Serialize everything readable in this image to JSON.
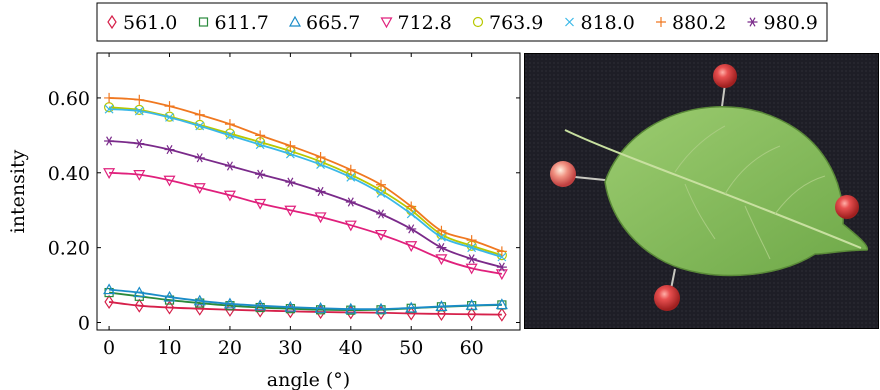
{
  "chart_data": {
    "type": "line",
    "xlabel": "angle (°)",
    "ylabel": "intensity",
    "xlim": [
      -2,
      68
    ],
    "ylim": [
      -0.02,
      0.72
    ],
    "xticks": [
      0,
      10,
      20,
      30,
      40,
      50,
      60
    ],
    "xtick_labels": [
      "0",
      "10",
      "20",
      "30",
      "40",
      "50",
      "60"
    ],
    "yticks": [
      0,
      0.2,
      0.4,
      0.6
    ],
    "ytick_labels": [
      "0",
      "0.20",
      "0.40",
      "0.60"
    ],
    "legend_position": "top",
    "grid": false,
    "x": [
      0,
      5,
      10,
      15,
      20,
      25,
      30,
      35,
      40,
      45,
      50,
      55,
      60,
      65
    ],
    "series": [
      {
        "name": "561.0",
        "color": "#d6204a",
        "marker": "diamond",
        "values": [
          0.055,
          0.045,
          0.04,
          0.037,
          0.034,
          0.032,
          0.03,
          0.028,
          0.027,
          0.026,
          0.024,
          0.023,
          0.022,
          0.021
        ]
      },
      {
        "name": "611.7",
        "color": "#2a8a3c",
        "marker": "square",
        "values": [
          0.08,
          0.07,
          0.06,
          0.052,
          0.045,
          0.04,
          0.037,
          0.034,
          0.033,
          0.034,
          0.038,
          0.042,
          0.045,
          0.047
        ]
      },
      {
        "name": "665.7",
        "color": "#1a8cc8",
        "marker": "triangle-up",
        "values": [
          0.088,
          0.08,
          0.068,
          0.058,
          0.05,
          0.045,
          0.041,
          0.038,
          0.036,
          0.036,
          0.039,
          0.043,
          0.046,
          0.048
        ]
      },
      {
        "name": "712.8",
        "color": "#e0207c",
        "marker": "triangle-down",
        "values": [
          0.4,
          0.395,
          0.38,
          0.36,
          0.34,
          0.318,
          0.3,
          0.282,
          0.26,
          0.235,
          0.205,
          0.17,
          0.145,
          0.13
        ]
      },
      {
        "name": "763.9",
        "color": "#b8c800",
        "marker": "circle",
        "values": [
          0.575,
          0.568,
          0.55,
          0.528,
          0.505,
          0.482,
          0.458,
          0.43,
          0.395,
          0.353,
          0.3,
          0.235,
          0.205,
          0.18
        ]
      },
      {
        "name": "818.0",
        "color": "#3ab8e8",
        "marker": "x",
        "values": [
          0.57,
          0.565,
          0.548,
          0.525,
          0.5,
          0.475,
          0.45,
          0.422,
          0.388,
          0.345,
          0.29,
          0.228,
          0.2,
          0.175
        ]
      },
      {
        "name": "880.2",
        "color": "#f07820",
        "marker": "plus",
        "values": [
          0.6,
          0.595,
          0.578,
          0.555,
          0.53,
          0.5,
          0.472,
          0.442,
          0.408,
          0.368,
          0.31,
          0.245,
          0.22,
          0.19
        ]
      },
      {
        "name": "980.9",
        "color": "#7a2a8a",
        "marker": "asterisk",
        "values": [
          0.485,
          0.478,
          0.462,
          0.44,
          0.418,
          0.396,
          0.375,
          0.35,
          0.322,
          0.29,
          0.25,
          0.2,
          0.17,
          0.148
        ]
      }
    ]
  },
  "photo": {
    "description_icon": "leaf-with-berries-photo",
    "background_color": "#1c1c24",
    "leaf_color": "#8cc060",
    "berry_color": "#e04848"
  }
}
